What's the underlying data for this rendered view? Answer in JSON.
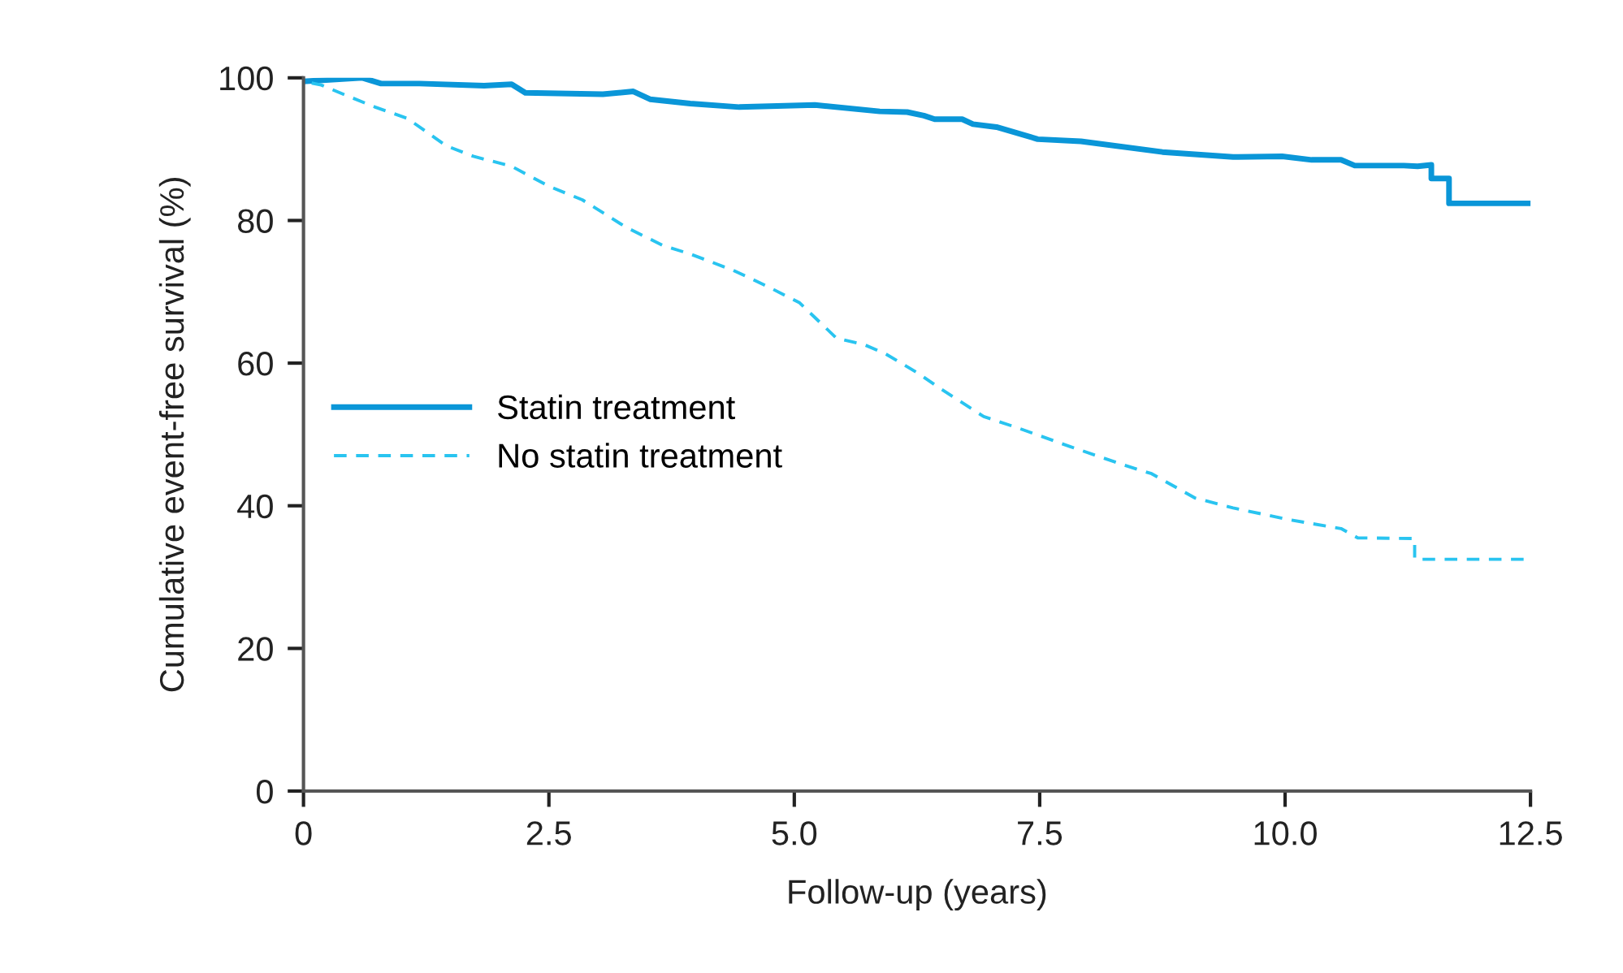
{
  "chart_data": {
    "type": "line",
    "xlabel": "Follow-up (years)",
    "ylabel": "Cumulative event-free survival (%)",
    "xlim": [
      0,
      12.5
    ],
    "ylim": [
      0,
      100
    ],
    "xticks": [
      {
        "value": 0,
        "label": "0"
      },
      {
        "value": 2.5,
        "label": "2.5"
      },
      {
        "value": 5,
        "label": "5.0"
      },
      {
        "value": 7.5,
        "label": "7.5"
      },
      {
        "value": 10,
        "label": "10.0"
      },
      {
        "value": 12.5,
        "label": "12.5"
      }
    ],
    "yticks": [
      0,
      20,
      40,
      60,
      80,
      100
    ],
    "grid": false,
    "legend": "left",
    "marker": "none",
    "series": [
      {
        "name": "Statin treatment",
        "color": "#0a96d8",
        "line_style": "solid",
        "x": [
          0,
          0.6,
          0.79,
          1.18,
          1.84,
          2.12,
          2.26,
          3.05,
          3.36,
          3.53,
          3.94,
          4.44,
          5.21,
          5.87,
          6.15,
          6.32,
          6.43,
          6.71,
          6.82,
          7.06,
          7.48,
          7.92,
          8.75,
          9.47,
          9.97,
          10.27,
          10.57,
          10.71,
          11.21,
          11.35,
          11.49,
          11.49,
          11.67,
          11.67,
          12.48
        ],
        "values": [
          99.5,
          100,
          99.2,
          99.2,
          98.9,
          99.1,
          97.9,
          97.7,
          98.1,
          97.0,
          96.4,
          95.9,
          96.2,
          95.3,
          95.2,
          94.7,
          94.2,
          94.2,
          93.5,
          93.1,
          91.4,
          91.1,
          89.6,
          88.9,
          89.0,
          88.5,
          88.5,
          87.7,
          87.7,
          87.6,
          87.8,
          85.9,
          85.9,
          82.4,
          82.4
        ]
      },
      {
        "name": "No statin treatment",
        "color": "#29c4f0",
        "line_style": "dashed",
        "x": [
          0,
          0.18,
          0.46,
          0.73,
          1.06,
          1.45,
          1.73,
          2.12,
          2.5,
          2.84,
          3.28,
          3.66,
          3.94,
          4.38,
          4.72,
          5.05,
          5.43,
          5.71,
          5.93,
          6.26,
          6.48,
          6.93,
          7.26,
          7.81,
          8.36,
          8.64,
          9.08,
          9.47,
          10.02,
          10.57,
          10.74,
          11.32,
          11.32,
          12.43
        ],
        "values": [
          99.5,
          99.0,
          97.4,
          95.9,
          94.3,
          90.5,
          89.0,
          87.6,
          84.8,
          82.9,
          79.1,
          76.5,
          75.3,
          73.0,
          70.8,
          68.5,
          63.5,
          62.6,
          61.3,
          58.6,
          56.5,
          52.5,
          51.0,
          48.3,
          45.7,
          44.5,
          41.1,
          39.7,
          38.1,
          36.8,
          35.5,
          35.4,
          32.5,
          32.5
        ]
      }
    ]
  }
}
